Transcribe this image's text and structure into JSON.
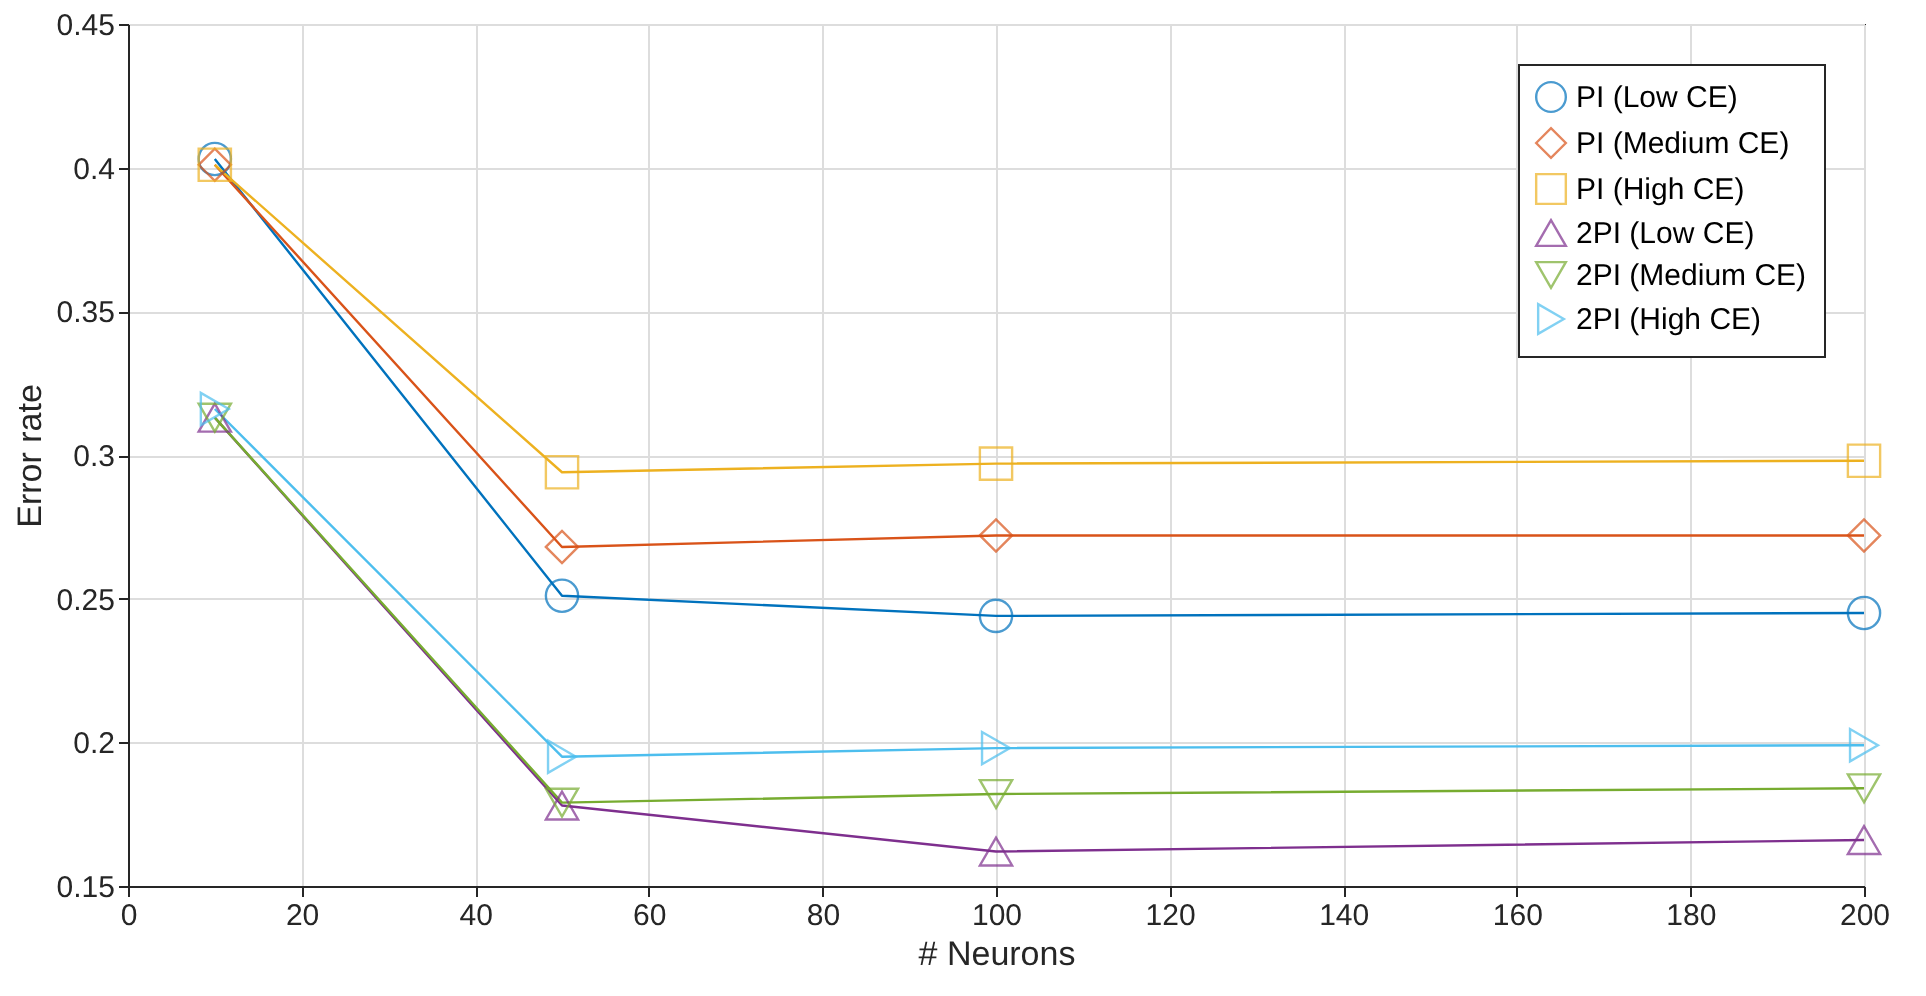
{
  "chart_data": {
    "type": "line",
    "xlabel": "# Neurons",
    "ylabel": "Error rate",
    "x": [
      10,
      50,
      100,
      200
    ],
    "series": [
      {
        "name": "PI (Low CE)",
        "color": "#0072bd",
        "marker": "circle",
        "values": [
          0.403,
          0.251,
          0.244,
          0.245
        ]
      },
      {
        "name": "PI (Medium CE)",
        "color": "#d95319",
        "marker": "diamond",
        "values": [
          0.401,
          0.268,
          0.272,
          0.272
        ]
      },
      {
        "name": "PI (High CE)",
        "color": "#edb120",
        "marker": "square",
        "values": [
          0.401,
          0.294,
          0.297,
          0.298
        ]
      },
      {
        "name": "2PI (Low CE)",
        "color": "#7e2f8e",
        "marker": "triangle",
        "values": [
          0.313,
          0.178,
          0.162,
          0.166
        ]
      },
      {
        "name": "2PI (Medium CE)",
        "color": "#77ac30",
        "marker": "triangle-down",
        "values": [
          0.313,
          0.179,
          0.182,
          0.184
        ]
      },
      {
        "name": "2PI (High CE)",
        "color": "#4dbeee",
        "marker": "triangle-right",
        "values": [
          0.316,
          0.195,
          0.198,
          0.199
        ]
      }
    ],
    "xlim": [
      0,
      200
    ],
    "xticks": [
      0,
      20,
      40,
      60,
      80,
      100,
      120,
      140,
      160,
      180,
      200
    ],
    "ylim": [
      0.15,
      0.45
    ],
    "yticks": [
      0.15,
      0.2,
      0.25,
      0.3,
      0.35,
      0.4,
      0.45
    ],
    "grid": true,
    "legend": "top right",
    "line_style": "solid"
  }
}
